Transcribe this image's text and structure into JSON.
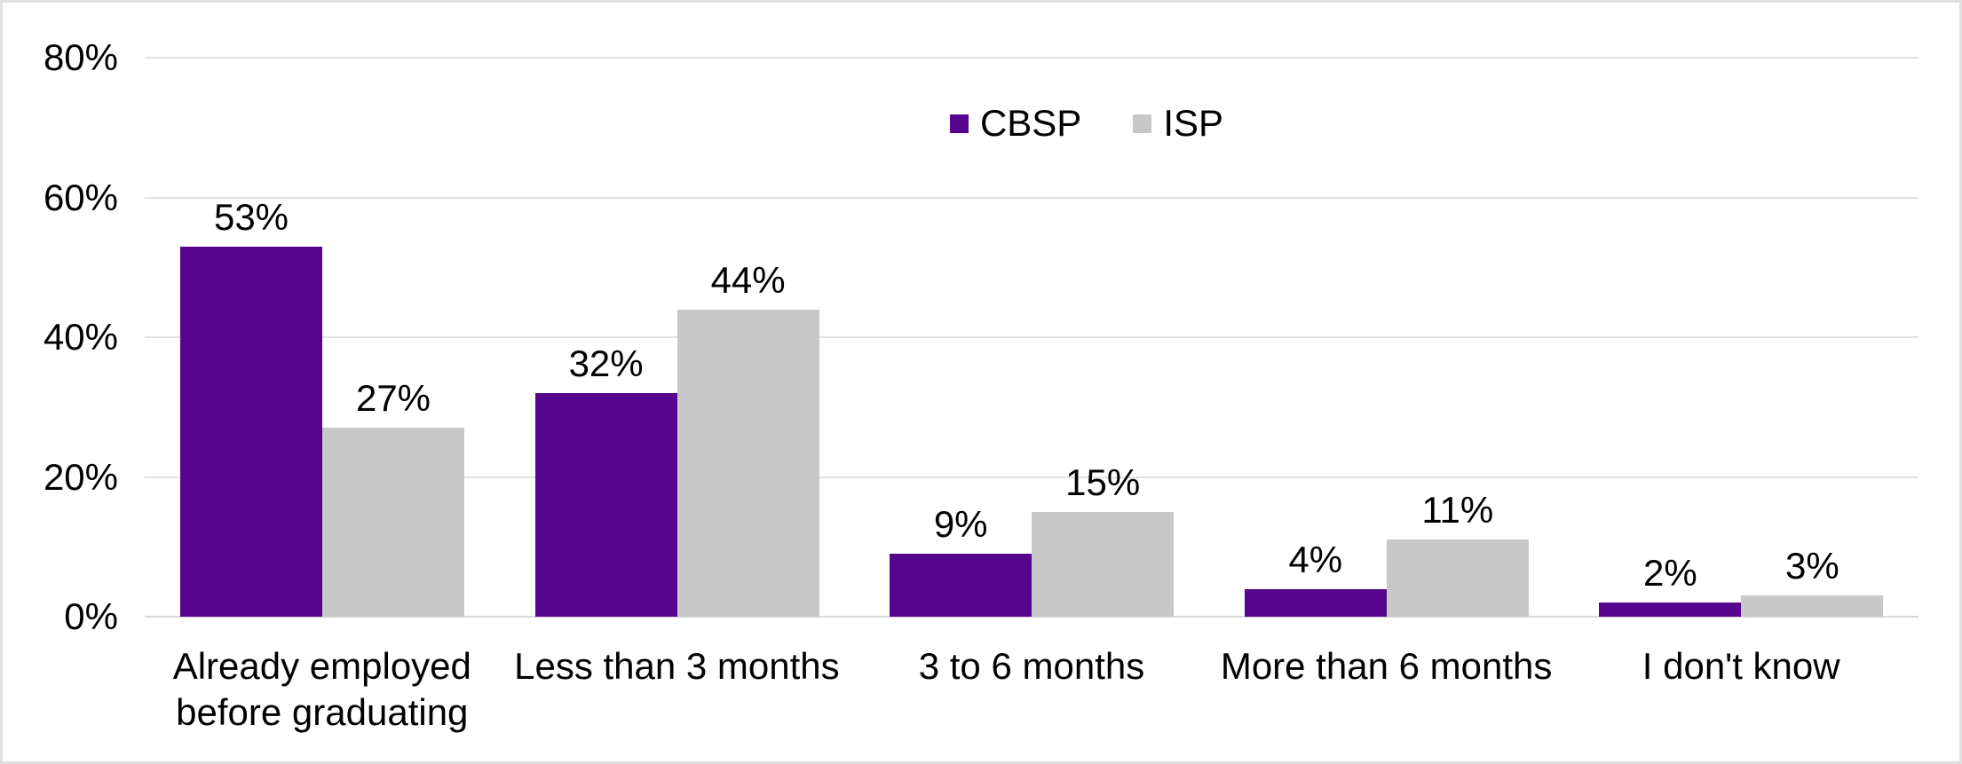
{
  "chart_data": {
    "type": "bar",
    "title": "",
    "categories": [
      "Already employed before graduating",
      "Less than 3 months",
      "3 to 6 months",
      "More than 6 months",
      "I don't know"
    ],
    "series": [
      {
        "name": "CBSP",
        "color": "#56068C",
        "values": [
          53,
          32,
          9,
          4,
          2
        ]
      },
      {
        "name": "ISP",
        "color": "#C8C8C8",
        "values": [
          27,
          44,
          15,
          11,
          3
        ]
      }
    ],
    "value_suffix": "%",
    "ylim": [
      0,
      80
    ],
    "yticks": [
      0,
      20,
      40,
      60,
      80
    ],
    "ytick_labels": [
      "0%",
      "20%",
      "40%",
      "60%",
      "80%"
    ],
    "grid": true,
    "legend_position": "top-center",
    "colors": {
      "gridline": "#E2E2E2",
      "axis_line": "#D9D9D9",
      "text": "#000000",
      "background": "#FFFFFF",
      "border": "#E1E1E1"
    }
  }
}
